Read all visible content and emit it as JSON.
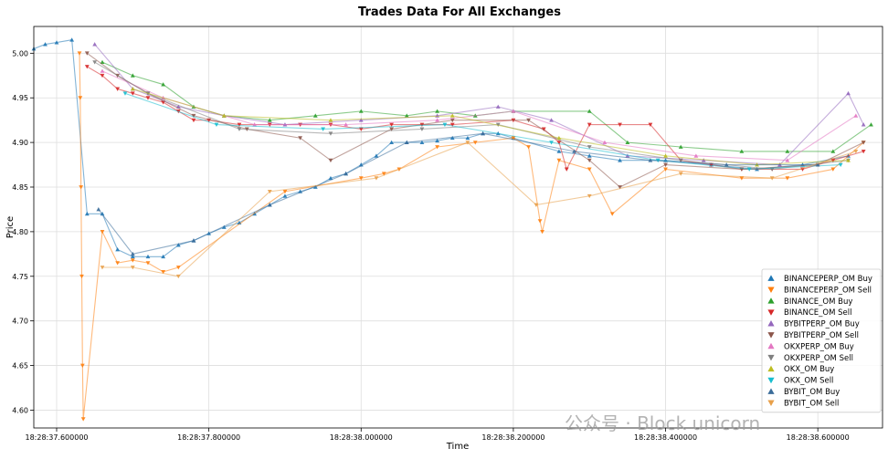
{
  "chart_data": {
    "type": "scatter",
    "title": "Trades Data For All Exchanges",
    "xlabel": "Time",
    "ylabel": "Price",
    "grid": true,
    "legend_position": "lower-right",
    "x_unit": "time",
    "xlim": [
      "18:28:37.570000",
      "18:28:38.685000"
    ],
    "ylim": [
      4.58,
      5.03
    ],
    "x_ticks": [
      "18:28:37.600000",
      "18:28:37.800000",
      "18:28:38.000000",
      "18:28:38.200000",
      "18:28:38.400000",
      "18:28:38.600000"
    ],
    "y_ticks": [
      4.6,
      4.65,
      4.7,
      4.75,
      4.8,
      4.85,
      4.9,
      4.95,
      5.0
    ],
    "y_tick_labels": [
      "4.60",
      "4.65",
      "4.70",
      "4.75",
      "4.80",
      "4.85",
      "4.90",
      "4.95",
      "5.00"
    ],
    "series": [
      {
        "name": "BINANCEPERP_OM Buy",
        "marker": "triangle-up",
        "color": "#1f77b4",
        "points": [
          [
            "18:28:37.570",
            5.005
          ],
          [
            "18:28:37.585",
            5.01
          ],
          [
            "18:28:37.600",
            5.012
          ],
          [
            "18:28:37.620",
            5.015
          ],
          [
            "18:28:37.640",
            4.82
          ],
          [
            "18:28:37.660",
            4.82
          ],
          [
            "18:28:37.680",
            4.78
          ],
          [
            "18:28:37.700",
            4.772
          ],
          [
            "18:28:37.720",
            4.772
          ],
          [
            "18:28:37.740",
            4.772
          ],
          [
            "18:28:37.760",
            4.785
          ],
          [
            "18:28:37.780",
            4.79
          ],
          [
            "18:28:37.800",
            4.798
          ],
          [
            "18:28:37.820",
            4.805
          ],
          [
            "18:28:37.840",
            4.81
          ],
          [
            "18:28:37.860",
            4.82
          ],
          [
            "18:28:37.880",
            4.83
          ],
          [
            "18:28:37.900",
            4.84
          ],
          [
            "18:28:37.920",
            4.845
          ],
          [
            "18:28:37.940",
            4.85
          ],
          [
            "18:28:37.960",
            4.86
          ],
          [
            "18:28:37.980",
            4.865
          ],
          [
            "18:28:38.000",
            4.875
          ],
          [
            "18:28:38.020",
            4.885
          ],
          [
            "18:28:38.040",
            4.9
          ],
          [
            "18:28:38.060",
            4.9
          ],
          [
            "18:28:38.080",
            4.9
          ],
          [
            "18:28:38.100",
            4.902
          ],
          [
            "18:28:38.120",
            4.905
          ],
          [
            "18:28:38.140",
            4.905
          ],
          [
            "18:28:38.160",
            4.91
          ],
          [
            "18:28:38.180",
            4.91
          ],
          [
            "18:28:38.200",
            4.905
          ],
          [
            "18:28:38.260",
            4.89
          ],
          [
            "18:28:38.300",
            4.885
          ],
          [
            "18:28:38.340",
            4.88
          ],
          [
            "18:28:38.400",
            4.88
          ],
          [
            "18:28:38.460",
            4.875
          ],
          [
            "18:28:38.520",
            4.87
          ],
          [
            "18:28:38.580",
            4.875
          ],
          [
            "18:28:38.640",
            4.885
          ]
        ]
      },
      {
        "name": "BINANCEPERP_OM Sell",
        "marker": "triangle-down",
        "color": "#ff7f0e",
        "points": [
          [
            "18:28:37.630",
            5.0
          ],
          [
            "18:28:37.631",
            4.95
          ],
          [
            "18:28:37.632",
            4.85
          ],
          [
            "18:28:37.633",
            4.75
          ],
          [
            "18:28:37.634",
            4.65
          ],
          [
            "18:28:37.635",
            4.59
          ],
          [
            "18:28:37.660",
            4.8
          ],
          [
            "18:28:37.680",
            4.765
          ],
          [
            "18:28:37.700",
            4.768
          ],
          [
            "18:28:37.720",
            4.765
          ],
          [
            "18:28:37.740",
            4.755
          ],
          [
            "18:28:37.760",
            4.76
          ],
          [
            "18:28:37.900",
            4.845
          ],
          [
            "18:28:38.000",
            4.86
          ],
          [
            "18:28:38.030",
            4.865
          ],
          [
            "18:28:38.050",
            4.87
          ],
          [
            "18:28:38.100",
            4.895
          ],
          [
            "18:28:38.150",
            4.9
          ],
          [
            "18:28:38.200",
            4.905
          ],
          [
            "18:28:38.220",
            4.895
          ],
          [
            "18:28:38.235",
            4.812
          ],
          [
            "18:28:38.238",
            4.8
          ],
          [
            "18:28:38.260",
            4.88
          ],
          [
            "18:28:38.300",
            4.87
          ],
          [
            "18:28:38.330",
            4.82
          ],
          [
            "18:28:38.400",
            4.87
          ],
          [
            "18:28:38.500",
            4.86
          ],
          [
            "18:28:38.560",
            4.86
          ],
          [
            "18:28:38.620",
            4.87
          ],
          [
            "18:28:38.660",
            4.9
          ]
        ]
      },
      {
        "name": "BINANCE_OM Buy",
        "marker": "triangle-up",
        "color": "#2ca02c",
        "points": [
          [
            "18:28:37.660",
            4.99
          ],
          [
            "18:28:37.700",
            4.975
          ],
          [
            "18:28:37.740",
            4.965
          ],
          [
            "18:28:37.780",
            4.94
          ],
          [
            "18:28:37.820",
            4.93
          ],
          [
            "18:28:37.880",
            4.925
          ],
          [
            "18:28:37.940",
            4.93
          ],
          [
            "18:28:38.000",
            4.935
          ],
          [
            "18:28:38.060",
            4.93
          ],
          [
            "18:28:38.100",
            4.935
          ],
          [
            "18:28:38.150",
            4.93
          ],
          [
            "18:28:38.200",
            4.935
          ],
          [
            "18:28:38.300",
            4.935
          ],
          [
            "18:28:38.350",
            4.9
          ],
          [
            "18:28:38.420",
            4.895
          ],
          [
            "18:28:38.500",
            4.89
          ],
          [
            "18:28:38.560",
            4.89
          ],
          [
            "18:28:38.620",
            4.89
          ],
          [
            "18:28:38.670",
            4.92
          ]
        ]
      },
      {
        "name": "BINANCE_OM Sell",
        "marker": "triangle-down",
        "color": "#d62728",
        "points": [
          [
            "18:28:37.640",
            4.985
          ],
          [
            "18:28:37.660",
            4.975
          ],
          [
            "18:28:37.680",
            4.96
          ],
          [
            "18:28:37.700",
            4.955
          ],
          [
            "18:28:37.720",
            4.95
          ],
          [
            "18:28:37.740",
            4.945
          ],
          [
            "18:28:37.760",
            4.935
          ],
          [
            "18:28:37.780",
            4.925
          ],
          [
            "18:28:37.800",
            4.925
          ],
          [
            "18:28:37.840",
            4.92
          ],
          [
            "18:28:37.880",
            4.92
          ],
          [
            "18:28:37.920",
            4.92
          ],
          [
            "18:28:37.960",
            4.92
          ],
          [
            "18:28:38.000",
            4.915
          ],
          [
            "18:28:38.040",
            4.92
          ],
          [
            "18:28:38.080",
            4.92
          ],
          [
            "18:28:38.120",
            4.92
          ],
          [
            "18:28:38.200",
            4.925
          ],
          [
            "18:28:38.240",
            4.915
          ],
          [
            "18:28:38.260",
            4.9
          ],
          [
            "18:28:38.270",
            4.87
          ],
          [
            "18:28:38.300",
            4.92
          ],
          [
            "18:28:38.340",
            4.92
          ],
          [
            "18:28:38.380",
            4.92
          ],
          [
            "18:28:38.420",
            4.88
          ],
          [
            "18:28:38.460",
            4.875
          ],
          [
            "18:28:38.500",
            4.87
          ],
          [
            "18:28:38.540",
            4.87
          ],
          [
            "18:28:38.580",
            4.87
          ],
          [
            "18:28:38.620",
            4.88
          ],
          [
            "18:28:38.660",
            4.89
          ]
        ]
      },
      {
        "name": "BYBITPERP_OM Buy",
        "marker": "triangle-up",
        "color": "#9467bd",
        "points": [
          [
            "18:28:37.650",
            5.01
          ],
          [
            "18:28:37.700",
            4.96
          ],
          [
            "18:28:37.760",
            4.94
          ],
          [
            "18:28:37.820",
            4.93
          ],
          [
            "18:28:37.900",
            4.92
          ],
          [
            "18:28:38.000",
            4.925
          ],
          [
            "18:28:38.100",
            4.93
          ],
          [
            "18:28:38.180",
            4.94
          ],
          [
            "18:28:38.250",
            4.925
          ],
          [
            "18:28:38.350",
            4.885
          ],
          [
            "18:28:38.450",
            4.88
          ],
          [
            "18:28:38.550",
            4.875
          ],
          [
            "18:28:38.640",
            4.955
          ],
          [
            "18:28:38.660",
            4.92
          ]
        ]
      },
      {
        "name": "BYBITPERP_OM Sell",
        "marker": "triangle-down",
        "color": "#8c564b",
        "points": [
          [
            "18:28:37.640",
            5.0
          ],
          [
            "18:28:37.680",
            4.975
          ],
          [
            "18:28:37.720",
            4.955
          ],
          [
            "18:28:37.780",
            4.93
          ],
          [
            "18:28:37.850",
            4.915
          ],
          [
            "18:28:37.920",
            4.905
          ],
          [
            "18:28:37.960",
            4.88
          ],
          [
            "18:28:38.040",
            4.915
          ],
          [
            "18:28:38.120",
            4.925
          ],
          [
            "18:28:38.220",
            4.925
          ],
          [
            "18:28:38.300",
            4.88
          ],
          [
            "18:28:38.340",
            4.85
          ],
          [
            "18:28:38.400",
            4.875
          ],
          [
            "18:28:38.500",
            4.87
          ],
          [
            "18:28:38.600",
            4.875
          ],
          [
            "18:28:38.660",
            4.9
          ]
        ]
      },
      {
        "name": "OKXPERP_OM Buy",
        "marker": "triangle-up",
        "color": "#e377c2",
        "points": [
          [
            "18:28:37.660",
            4.98
          ],
          [
            "18:28:37.740",
            4.95
          ],
          [
            "18:28:37.860",
            4.92
          ],
          [
            "18:28:37.980",
            4.92
          ],
          [
            "18:28:38.100",
            4.925
          ],
          [
            "18:28:38.200",
            4.935
          ],
          [
            "18:28:38.320",
            4.9
          ],
          [
            "18:28:38.440",
            4.885
          ],
          [
            "18:28:38.560",
            4.88
          ],
          [
            "18:28:38.650",
            4.93
          ]
        ]
      },
      {
        "name": "OKXPERP_OM Sell",
        "marker": "triangle-down",
        "color": "#7f7f7f",
        "points": [
          [
            "18:28:37.650",
            4.99
          ],
          [
            "18:28:37.720",
            4.955
          ],
          [
            "18:28:37.840",
            4.915
          ],
          [
            "18:28:37.960",
            4.91
          ],
          [
            "18:28:38.080",
            4.915
          ],
          [
            "18:28:38.180",
            4.92
          ],
          [
            "18:28:38.300",
            4.895
          ],
          [
            "18:28:38.420",
            4.88
          ],
          [
            "18:28:38.540",
            4.87
          ],
          [
            "18:28:38.640",
            4.88
          ]
        ]
      },
      {
        "name": "OKX_OM Buy",
        "marker": "triangle-up",
        "color": "#bcbd22",
        "points": [
          [
            "18:28:37.700",
            4.96
          ],
          [
            "18:28:37.820",
            4.93
          ],
          [
            "18:28:37.960",
            4.925
          ],
          [
            "18:28:38.120",
            4.93
          ],
          [
            "18:28:38.260",
            4.905
          ],
          [
            "18:28:38.400",
            4.885
          ],
          [
            "18:28:38.520",
            4.875
          ],
          [
            "18:28:38.640",
            4.88
          ]
        ]
      },
      {
        "name": "OKX_OM Sell",
        "marker": "triangle-down",
        "color": "#17becf",
        "points": [
          [
            "18:28:37.690",
            4.955
          ],
          [
            "18:28:37.810",
            4.92
          ],
          [
            "18:28:37.950",
            4.915
          ],
          [
            "18:28:38.110",
            4.92
          ],
          [
            "18:28:38.250",
            4.9
          ],
          [
            "18:28:38.390",
            4.88
          ],
          [
            "18:28:38.510",
            4.87
          ],
          [
            "18:28:38.630",
            4.875
          ]
        ]
      },
      {
        "name": "BYBIT_OM Buy",
        "marker": "triangle-up",
        "color": "#3b6d9a",
        "points": [
          [
            "18:28:37.655",
            4.825
          ],
          [
            "18:28:37.700",
            4.775
          ],
          [
            "18:28:37.780",
            4.79
          ],
          [
            "18:28:37.880",
            4.83
          ],
          [
            "18:28:37.980",
            4.865
          ],
          [
            "18:28:38.060",
            4.9
          ],
          [
            "18:28:38.160",
            4.91
          ],
          [
            "18:28:38.280",
            4.89
          ],
          [
            "18:28:38.380",
            4.88
          ],
          [
            "18:28:38.480",
            4.875
          ],
          [
            "18:28:38.600",
            4.875
          ]
        ]
      },
      {
        "name": "BYBIT_OM Sell",
        "marker": "triangle-down",
        "color": "#e8a04a",
        "points": [
          [
            "18:28:37.660",
            4.76
          ],
          [
            "18:28:37.700",
            4.76
          ],
          [
            "18:28:37.760",
            4.75
          ],
          [
            "18:28:37.880",
            4.845
          ],
          [
            "18:28:38.020",
            4.86
          ],
          [
            "18:28:38.140",
            4.9
          ],
          [
            "18:28:38.230",
            4.83
          ],
          [
            "18:28:38.300",
            4.84
          ],
          [
            "18:28:38.420",
            4.865
          ],
          [
            "18:28:38.540",
            4.86
          ],
          [
            "18:28:38.650",
            4.89
          ]
        ]
      }
    ]
  },
  "watermark": {
    "text": "公众号 · Block unicorn"
  }
}
